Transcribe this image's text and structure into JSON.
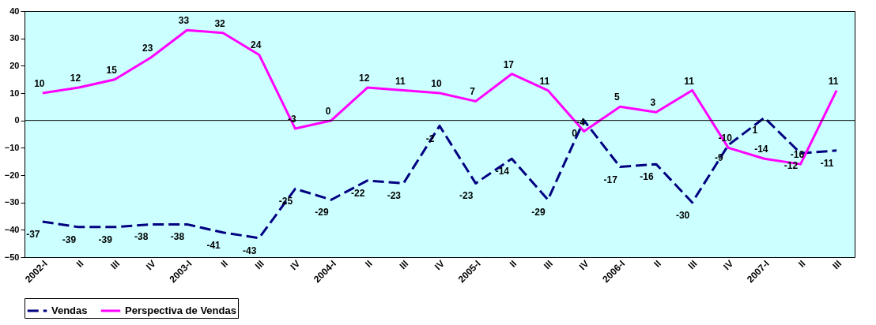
{
  "chart_data": {
    "type": "line",
    "categories": [
      "2002-I",
      "II",
      "III",
      "IV",
      "2003-I",
      "II",
      "III",
      "IV",
      "2004-I",
      "II",
      "III",
      "IV",
      "2005-I",
      "II",
      "III",
      "IV",
      "2006-I",
      "II",
      "III",
      "IV",
      "2007-I",
      "II",
      "III"
    ],
    "series": [
      {
        "name": "Vendas",
        "color": "#000080",
        "line_style": "dashed",
        "values": [
          -37,
          -39,
          -39,
          -38,
          -38,
          -41,
          -43,
          -25,
          -29,
          -22,
          -23,
          -2,
          -23,
          -14,
          -29,
          0,
          -17,
          -16,
          -30,
          -9,
          1,
          -12,
          -11
        ]
      },
      {
        "name": "Perspectiva de Vendas",
        "color": "#ff00ff",
        "line_style": "solid",
        "values": [
          10,
          12,
          15,
          23,
          33,
          32,
          24,
          -3,
          0,
          12,
          11,
          10,
          7,
          17,
          11,
          -4,
          5,
          3,
          11,
          -10,
          -14,
          -16,
          11
        ]
      }
    ],
    "ylim": [
      -50,
      40
    ],
    "yticks": [
      -50,
      -40,
      -30,
      -20,
      -10,
      0,
      10,
      20,
      30,
      40
    ],
    "ref_lines": [
      {
        "axis": "y",
        "value": 0,
        "color": "#000000"
      }
    ],
    "data_labels": true,
    "legend": "bottom",
    "grid": false,
    "marker": "none"
  }
}
